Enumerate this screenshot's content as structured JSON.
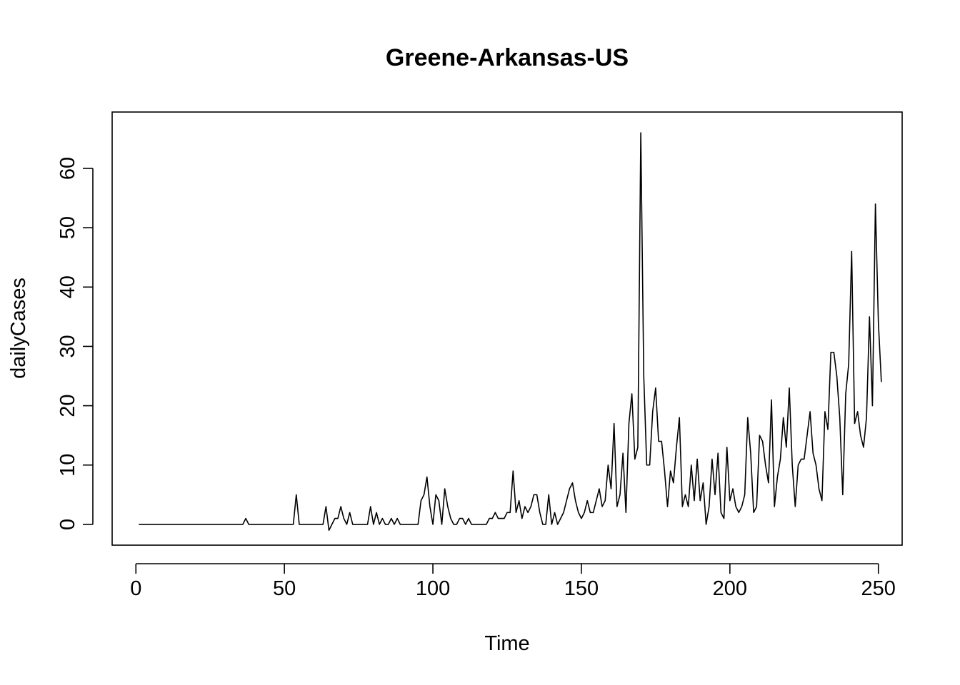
{
  "chart_data": {
    "type": "line",
    "title": "Greene-Arkansas-US",
    "xlabel": "Time",
    "ylabel": "dailyCases",
    "xlim": [
      -8,
      258
    ],
    "ylim": [
      -3.5,
      69.5
    ],
    "xticks": [
      0,
      50,
      100,
      150,
      200,
      250
    ],
    "yticks": [
      0,
      10,
      20,
      30,
      40,
      50,
      60
    ],
    "grid": false,
    "legend": "none",
    "series": [
      {
        "x_start": 1,
        "values": [
          0,
          0,
          0,
          0,
          0,
          0,
          0,
          0,
          0,
          0,
          0,
          0,
          0,
          0,
          0,
          0,
          0,
          0,
          0,
          0,
          0,
          0,
          0,
          0,
          0,
          0,
          0,
          0,
          0,
          0,
          0,
          0,
          0,
          0,
          0,
          0,
          1,
          0,
          0,
          0,
          0,
          0,
          0,
          0,
          0,
          0,
          0,
          0,
          0,
          0,
          0,
          0,
          0,
          5,
          0,
          0,
          0,
          0,
          0,
          0,
          0,
          0,
          0,
          3,
          -1,
          0,
          1,
          1,
          3,
          1,
          0,
          2,
          0,
          0,
          0,
          0,
          0,
          0,
          3,
          0,
          2,
          0,
          1,
          0,
          0,
          1,
          0,
          1,
          0,
          0,
          0,
          0,
          0,
          0,
          0,
          4,
          5,
          8,
          3,
          0,
          5,
          4,
          0,
          6,
          3,
          1,
          0,
          0,
          1,
          1,
          0,
          1,
          0,
          0,
          0,
          0,
          0,
          0,
          1,
          1,
          2,
          1,
          1,
          1,
          2,
          2,
          9,
          2,
          4,
          1,
          3,
          2,
          3,
          5,
          5,
          2,
          0,
          0,
          5,
          0,
          2,
          0,
          1,
          2,
          4,
          6,
          7,
          4,
          2,
          1,
          2,
          4,
          2,
          2,
          4,
          6,
          3,
          4,
          10,
          6,
          17,
          3,
          5,
          12,
          2,
          17,
          22,
          11,
          13,
          66,
          25,
          10,
          10,
          19,
          23,
          14,
          14,
          9,
          3,
          9,
          7,
          13,
          18,
          3,
          5,
          3,
          10,
          4,
          11,
          4,
          7,
          0,
          3,
          11,
          5,
          12,
          2,
          1,
          13,
          4,
          6,
          3,
          2,
          3,
          5,
          18,
          12,
          2,
          3,
          15,
          14,
          10,
          7,
          21,
          3,
          8,
          11,
          18,
          13,
          23,
          10,
          3,
          10,
          11,
          11,
          15,
          19,
          12,
          10,
          6,
          4,
          19,
          16,
          29,
          29,
          25,
          18,
          5,
          22,
          27,
          46,
          17,
          19,
          15,
          13,
          18,
          35,
          20,
          54,
          34,
          24
        ]
      }
    ]
  }
}
